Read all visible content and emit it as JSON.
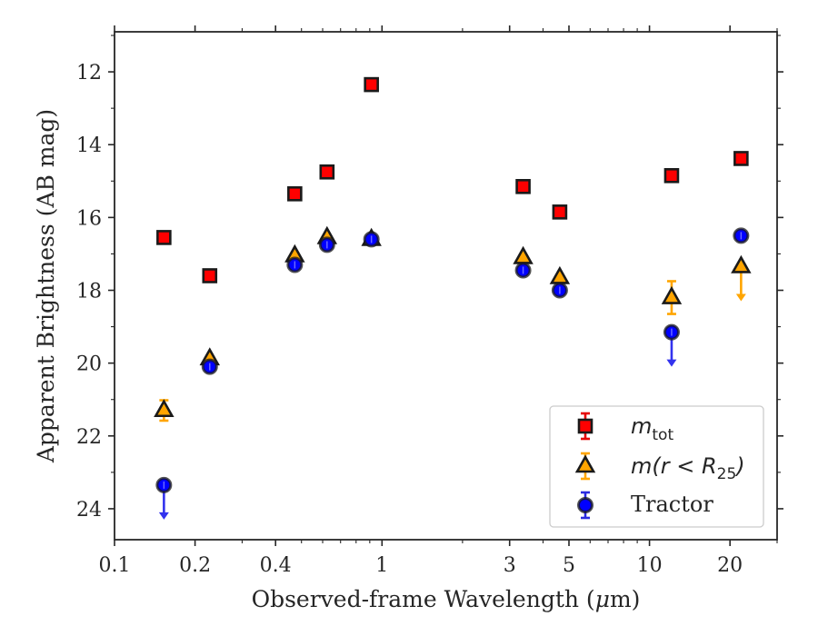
{
  "chart_data": {
    "type": "scatter",
    "xlabel_prefix": "Observed-frame Wavelength (",
    "xlabel_mu": "μ",
    "xlabel_suffix": "m)",
    "ylabel": "Apparent Brightness (AB mag)",
    "xscale": "log",
    "xlim": [
      0.1,
      30
    ],
    "ylim": [
      24.85,
      10.9
    ],
    "y_inverted": true,
    "xticks": [
      0.1,
      0.2,
      0.4,
      1,
      3,
      5,
      10,
      20
    ],
    "xtick_labels": [
      "0.1",
      "0.2",
      "0.4",
      "1",
      "3",
      "5",
      "10",
      "20"
    ],
    "yticks": [
      12,
      14,
      16,
      18,
      20,
      22,
      24
    ],
    "ytick_labels": [
      "12",
      "14",
      "16",
      "18",
      "20",
      "22",
      "24"
    ],
    "legend_position": "lower right",
    "series": [
      {
        "name": "m_tot",
        "marker": "square",
        "color": "#ff0000",
        "edgecolor": "#1a1a1a",
        "x": [
          0.153,
          0.227,
          0.472,
          0.623,
          0.913,
          3.37,
          4.62,
          12.1,
          22.0
        ],
        "y": [
          16.55,
          17.6,
          15.35,
          14.75,
          12.35,
          15.15,
          15.85,
          14.85,
          14.38
        ],
        "yerr": [
          0.05,
          0.05,
          0.03,
          0.03,
          0.03,
          0.03,
          0.03,
          0.05,
          0.05
        ],
        "upper_limit": [
          false,
          false,
          false,
          false,
          false,
          false,
          false,
          false,
          false
        ]
      },
      {
        "name": "m(r<R25)",
        "marker": "triangle",
        "color": "#ffa500",
        "edgecolor": "#1a1a1a",
        "x": [
          0.153,
          0.227,
          0.472,
          0.623,
          0.913,
          3.37,
          4.62,
          12.1,
          22.0
        ],
        "y": [
          21.3,
          19.88,
          17.05,
          16.55,
          16.6,
          17.1,
          17.65,
          18.2,
          17.35
        ],
        "yerr": [
          0.28,
          0.05,
          0.04,
          0.04,
          0.03,
          0.04,
          0.05,
          0.45,
          0.0
        ],
        "upper_limit": [
          false,
          false,
          false,
          false,
          false,
          false,
          false,
          false,
          true
        ]
      },
      {
        "name": "Tractor",
        "marker": "circle",
        "color": "#0000ff",
        "edgecolor": "#1a1a1a",
        "x": [
          0.153,
          0.227,
          0.472,
          0.623,
          0.913,
          3.37,
          4.62,
          12.1,
          22.0
        ],
        "y": [
          23.35,
          20.1,
          17.3,
          16.75,
          16.6,
          17.45,
          18.0,
          19.15,
          16.5
        ],
        "yerr": [
          0.0,
          0.05,
          0.04,
          0.04,
          0.03,
          0.04,
          0.05,
          0.0,
          0.05
        ],
        "upper_limit": [
          true,
          false,
          false,
          false,
          false,
          false,
          false,
          true,
          false
        ]
      }
    ],
    "legend": [
      {
        "math": "m",
        "sub": "tot",
        "rest": ""
      },
      {
        "math": "m(r < R",
        "sub": "25",
        "rest": ")"
      },
      {
        "text": "Tractor"
      }
    ]
  }
}
